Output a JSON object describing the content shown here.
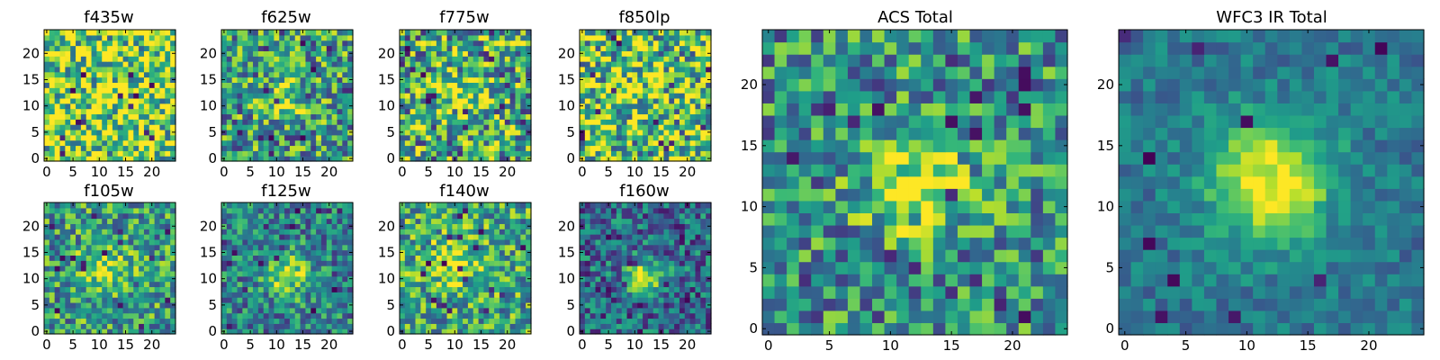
{
  "chart_data": [
    {
      "type": "heatmap",
      "title": "f435w",
      "grid_size": 25,
      "colormap": "viridis",
      "xticks": [
        0,
        5,
        10,
        15,
        20
      ],
      "yticks": [
        0,
        5,
        10,
        15,
        20
      ],
      "xlim": [
        0,
        25
      ],
      "ylim": [
        0,
        25
      ],
      "grid": false,
      "base_level": 0.8,
      "noise": 0.5,
      "peak": [
        12,
        12
      ],
      "peak_strength": 0.05,
      "peak_sigma": 3.0
    },
    {
      "type": "heatmap",
      "title": "f625w",
      "grid_size": 25,
      "colormap": "viridis",
      "xticks": [
        0,
        5,
        10,
        15,
        20
      ],
      "yticks": [
        0,
        5,
        10,
        15,
        20
      ],
      "xlim": [
        0,
        25
      ],
      "ylim": [
        0,
        25
      ],
      "grid": false,
      "base_level": 0.55,
      "noise": 0.4,
      "peak": [
        12,
        12
      ],
      "peak_strength": 0.35,
      "peak_sigma": 2.5
    },
    {
      "type": "heatmap",
      "title": "f775w",
      "grid_size": 25,
      "colormap": "viridis",
      "xticks": [
        0,
        5,
        10,
        15,
        20
      ],
      "yticks": [
        0,
        5,
        10,
        15,
        20
      ],
      "xlim": [
        0,
        25
      ],
      "ylim": [
        0,
        25
      ],
      "grid": false,
      "base_level": 0.6,
      "noise": 0.45,
      "peak": [
        11,
        12
      ],
      "peak_strength": 0.3,
      "peak_sigma": 2.5
    },
    {
      "type": "heatmap",
      "title": "f850lp",
      "grid_size": 25,
      "colormap": "viridis",
      "xticks": [
        0,
        5,
        10,
        15,
        20
      ],
      "yticks": [
        0,
        5,
        10,
        15,
        20
      ],
      "xlim": [
        0,
        25
      ],
      "ylim": [
        0,
        25
      ],
      "grid": false,
      "base_level": 0.72,
      "noise": 0.5,
      "peak": [
        12,
        12
      ],
      "peak_strength": 0.1,
      "peak_sigma": 3.0
    },
    {
      "type": "heatmap",
      "title": "f105w",
      "grid_size": 25,
      "colormap": "viridis",
      "xticks": [
        0,
        5,
        10,
        15,
        20
      ],
      "yticks": [
        0,
        5,
        10,
        15,
        20
      ],
      "xlim": [
        0,
        25
      ],
      "ylim": [
        0,
        25
      ],
      "grid": false,
      "base_level": 0.55,
      "noise": 0.35,
      "peak": [
        11,
        12
      ],
      "peak_strength": 0.4,
      "peak_sigma": 3.0
    },
    {
      "type": "heatmap",
      "title": "f125w",
      "grid_size": 25,
      "colormap": "viridis",
      "xticks": [
        0,
        5,
        10,
        15,
        20
      ],
      "yticks": [
        0,
        5,
        10,
        15,
        20
      ],
      "xlim": [
        0,
        25
      ],
      "ylim": [
        0,
        25
      ],
      "grid": false,
      "base_level": 0.45,
      "noise": 0.3,
      "peak": [
        12,
        11
      ],
      "peak_strength": 0.45,
      "peak_sigma": 3.0
    },
    {
      "type": "heatmap",
      "title": "f140w",
      "grid_size": 25,
      "colormap": "viridis",
      "xticks": [
        0,
        5,
        10,
        15,
        20
      ],
      "yticks": [
        0,
        5,
        10,
        15,
        20
      ],
      "xlim": [
        0,
        25
      ],
      "ylim": [
        0,
        25
      ],
      "grid": false,
      "base_level": 0.6,
      "noise": 0.35,
      "peak": [
        10,
        13
      ],
      "peak_strength": 0.35,
      "peak_sigma": 3.0
    },
    {
      "type": "heatmap",
      "title": "f160w",
      "grid_size": 25,
      "colormap": "viridis",
      "xticks": [
        0,
        5,
        10,
        15,
        20
      ],
      "yticks": [
        0,
        5,
        10,
        15,
        20
      ],
      "xlim": [
        0,
        25
      ],
      "ylim": [
        0,
        25
      ],
      "grid": false,
      "base_level": 0.35,
      "noise": 0.3,
      "peak": [
        12,
        10
      ],
      "peak_strength": 0.6,
      "peak_sigma": 2.5
    },
    {
      "type": "heatmap",
      "title": "ACS Total",
      "grid_size": 25,
      "colormap": "viridis",
      "xticks": [
        0,
        5,
        10,
        15,
        20
      ],
      "yticks": [
        0,
        5,
        10,
        15,
        20
      ],
      "xlim": [
        0,
        25
      ],
      "ylim": [
        0,
        25
      ],
      "grid": false,
      "base_level": 0.5,
      "noise": 0.35,
      "peak": [
        12,
        12
      ],
      "peak_strength": 0.45,
      "peak_sigma": 3.0
    },
    {
      "type": "heatmap",
      "title": "WFC3 IR Total",
      "grid_size": 25,
      "colormap": "viridis",
      "xticks": [
        0,
        5,
        10,
        15,
        20
      ],
      "yticks": [
        0,
        5,
        10,
        15,
        20
      ],
      "xlim": [
        0,
        25
      ],
      "ylim": [
        0,
        25
      ],
      "grid": false,
      "base_level": 0.4,
      "noise": 0.15,
      "peak": [
        12,
        12
      ],
      "peak_strength": 0.6,
      "peak_sigma": 3.5
    }
  ]
}
